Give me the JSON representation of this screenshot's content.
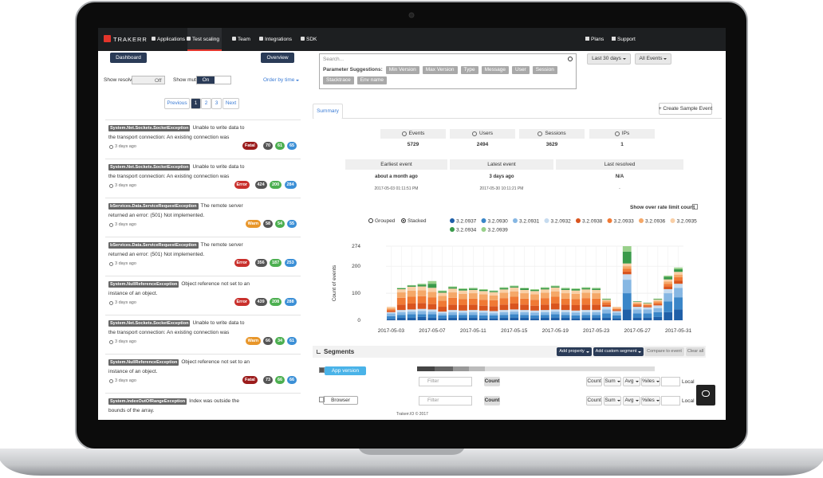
{
  "nav": {
    "logo": "TRAKERR",
    "items": [
      "Applications",
      "Test scaling",
      "Team",
      "Integrations",
      "SDK"
    ],
    "active": 1,
    "right": [
      "Plans",
      "Support"
    ]
  },
  "sidebar": {
    "dashboard": "Dashboard",
    "overview": "Overview",
    "show_resolved": "Show resolved",
    "resolved_state": "Off",
    "show_muted": "Show muted",
    "muted_state": "On",
    "order": "Order by time",
    "pagination": [
      "Previous",
      "1",
      "2",
      "3",
      "Next"
    ],
    "current_page": 1,
    "errors": [
      {
        "type": "System.Net.Sockets.SocketException",
        "message": "Unable to write data to the transport connection: An existing connection was forcibly...",
        "time": "3 days ago",
        "level": "Fatal",
        "counts": [
          70,
          61,
          65
        ]
      },
      {
        "type": "System.Net.Sockets.SocketException",
        "message": "Unable to write data to the transport connection: An existing connection was forcibly...",
        "time": "3 days ago",
        "level": "Error",
        "counts": [
          424,
          200,
          284
        ]
      },
      {
        "type": "bServices.Data.ServiceRequestException",
        "message": "The remote server returned an error: (501) Not implemented.",
        "time": "3 days ago",
        "level": "Warn",
        "counts": [
          58,
          54,
          55
        ]
      },
      {
        "type": "bServices.Data.ServiceRequestException",
        "message": "The remote server returned an error: (501) Not implemented.",
        "time": "3 days ago",
        "level": "Error",
        "counts": [
          356,
          187,
          253
        ]
      },
      {
        "type": "System.NullReferenceException",
        "message": "Object reference not set to an instance of an object.",
        "time": "3 days ago",
        "level": "Error",
        "counts": [
          439,
          208,
          288
        ]
      },
      {
        "type": "System.Net.Sockets.SocketException",
        "message": "Unable to write data to the transport connection: An existing connection was forcibly...",
        "time": "3 days ago",
        "level": "Warn",
        "counts": [
          66,
          34,
          61
        ]
      },
      {
        "type": "System.NullReferenceException",
        "message": "Object reference not set to an instance of an object.",
        "time": "3 days ago",
        "level": "Fatal",
        "counts": [
          73,
          66,
          66
        ]
      },
      {
        "type": "System.IndexOutOfRangeException",
        "message": "Index was outside the bounds of the array.",
        "counts": []
      }
    ]
  },
  "search": {
    "placeholder": "Search...",
    "suggestions_label": "Parameter Suggestions:",
    "suggestions": [
      "Min Version",
      "Max Version",
      "Type",
      "Message",
      "User",
      "Session",
      "Stacktrace",
      "Env name"
    ]
  },
  "filters": [
    "Last 30 days",
    "All Events"
  ],
  "tab": "Summary",
  "create": "+ Create Sample Event",
  "stats": [
    {
      "label": "Events",
      "value": 5729
    },
    {
      "label": "Users",
      "value": 2494
    },
    {
      "label": "Sessions",
      "value": 3629
    },
    {
      "label": "IPs",
      "value": 1
    }
  ],
  "times": [
    {
      "label": "Earliest event",
      "text": "about a month ago",
      "date": "2017-05-03 01:11:51 PM"
    },
    {
      "label": "Latest event",
      "text": "3 days ago",
      "date": "2017-05-30 10:11:21 PM"
    },
    {
      "label": "Last resolved",
      "text": "N/A",
      "date": "-"
    }
  ],
  "rate_limit": "Show over rate limit count",
  "view_modes": [
    "Grouped",
    "Stacked"
  ],
  "view_mode": 1,
  "chart_data": {
    "type": "bar",
    "stacked": true,
    "y_label": "Count of events",
    "categories": [
      "2017-05-03",
      null,
      null,
      null,
      "2017-05-07",
      null,
      null,
      null,
      "2017-05-11",
      null,
      null,
      null,
      "2017-05-15",
      null,
      null,
      null,
      "2017-05-19",
      null,
      null,
      null,
      "2017-05-23",
      null,
      null,
      null,
      "2017-05-27",
      null,
      null,
      null,
      "2017-05-31"
    ],
    "ylim": [
      0,
      274
    ],
    "yticks": [
      0,
      100,
      200,
      274
    ],
    "grid": true,
    "series": [
      {
        "name": "3.2.0937",
        "color": "#1f5fa8",
        "values": [
          5,
          10,
          10,
          12,
          10,
          8,
          10,
          10,
          10,
          8,
          8,
          10,
          10,
          10,
          8,
          10,
          10,
          10,
          8,
          10,
          10,
          10,
          8,
          40,
          10,
          10,
          12,
          30,
          40
        ]
      },
      {
        "name": "3.2.0930",
        "color": "#3a86c8",
        "values": [
          10,
          10,
          12,
          10,
          12,
          10,
          10,
          10,
          10,
          10,
          10,
          10,
          12,
          10,
          10,
          10,
          12,
          10,
          10,
          10,
          10,
          15,
          10,
          60,
          15,
          15,
          18,
          40,
          45
        ]
      },
      {
        "name": "3.2.0931",
        "color": "#86b7e3",
        "values": [
          10,
          10,
          10,
          12,
          10,
          8,
          10,
          8,
          10,
          10,
          8,
          10,
          10,
          10,
          10,
          10,
          10,
          10,
          10,
          10,
          10,
          15,
          10,
          50,
          15,
          15,
          15,
          30,
          35
        ]
      },
      {
        "name": "3.2.0932",
        "color": "#c6dbef",
        "values": [
          5,
          8,
          8,
          8,
          8,
          6,
          8,
          8,
          8,
          8,
          8,
          8,
          8,
          8,
          8,
          8,
          8,
          8,
          8,
          8,
          8,
          10,
          6,
          20,
          10,
          8,
          10,
          15,
          15
        ]
      },
      {
        "name": "3.2.0938",
        "color": "#d9541e",
        "values": [
          5,
          20,
          22,
          22,
          20,
          18,
          20,
          20,
          20,
          18,
          18,
          20,
          22,
          20,
          18,
          20,
          22,
          20,
          20,
          20,
          20,
          8,
          4,
          10,
          5,
          4,
          5,
          10,
          12
        ]
      },
      {
        "name": "3.2.0933",
        "color": "#f07a35",
        "values": [
          5,
          25,
          25,
          25,
          25,
          22,
          25,
          22,
          22,
          22,
          22,
          24,
          25,
          22,
          22,
          24,
          25,
          22,
          22,
          24,
          22,
          8,
          4,
          10,
          5,
          4,
          6,
          10,
          12
        ]
      },
      {
        "name": "3.2.0936",
        "color": "#f5a868",
        "values": [
          5,
          20,
          22,
          22,
          20,
          18,
          20,
          20,
          20,
          20,
          18,
          20,
          20,
          20,
          20,
          20,
          20,
          20,
          20,
          20,
          20,
          6,
          4,
          10,
          4,
          4,
          5,
          8,
          10
        ]
      },
      {
        "name": "3.2.0935",
        "color": "#f9cfa6",
        "values": [
          5,
          12,
          15,
          14,
          15,
          12,
          14,
          12,
          12,
          12,
          12,
          12,
          14,
          12,
          12,
          12,
          14,
          12,
          12,
          12,
          12,
          4,
          4,
          10,
          4,
          3,
          5,
          8,
          10
        ]
      },
      {
        "name": "3.2.0934",
        "color": "#3a9a4a",
        "values": [
          0,
          3,
          4,
          6,
          15,
          5,
          5,
          5,
          5,
          4,
          4,
          5,
          4,
          6,
          4,
          5,
          4,
          5,
          5,
          5,
          5,
          2,
          0,
          44,
          2,
          2,
          2,
          10,
          10
        ]
      },
      {
        "name": "3.2.0939",
        "color": "#98d08a",
        "values": [
          0,
          2,
          2,
          4,
          10,
          3,
          3,
          3,
          3,
          3,
          2,
          3,
          3,
          2,
          3,
          3,
          3,
          3,
          3,
          3,
          3,
          2,
          0,
          20,
          0,
          0,
          2,
          4,
          6
        ]
      }
    ]
  },
  "segments": {
    "title": "Segments",
    "buttons": [
      "Add property",
      "Add custom segment",
      "Compare to event",
      "Clear all"
    ],
    "rows": [
      {
        "name": "App version",
        "checked": true
      },
      {
        "name": "Browser",
        "checked": false
      }
    ],
    "filter": "Filter",
    "count": "Count",
    "aggregates": [
      "Count",
      "Sum",
      "Avg",
      "%iles"
    ],
    "local": "Local"
  },
  "footer": "Trakerr.IO © 2017"
}
